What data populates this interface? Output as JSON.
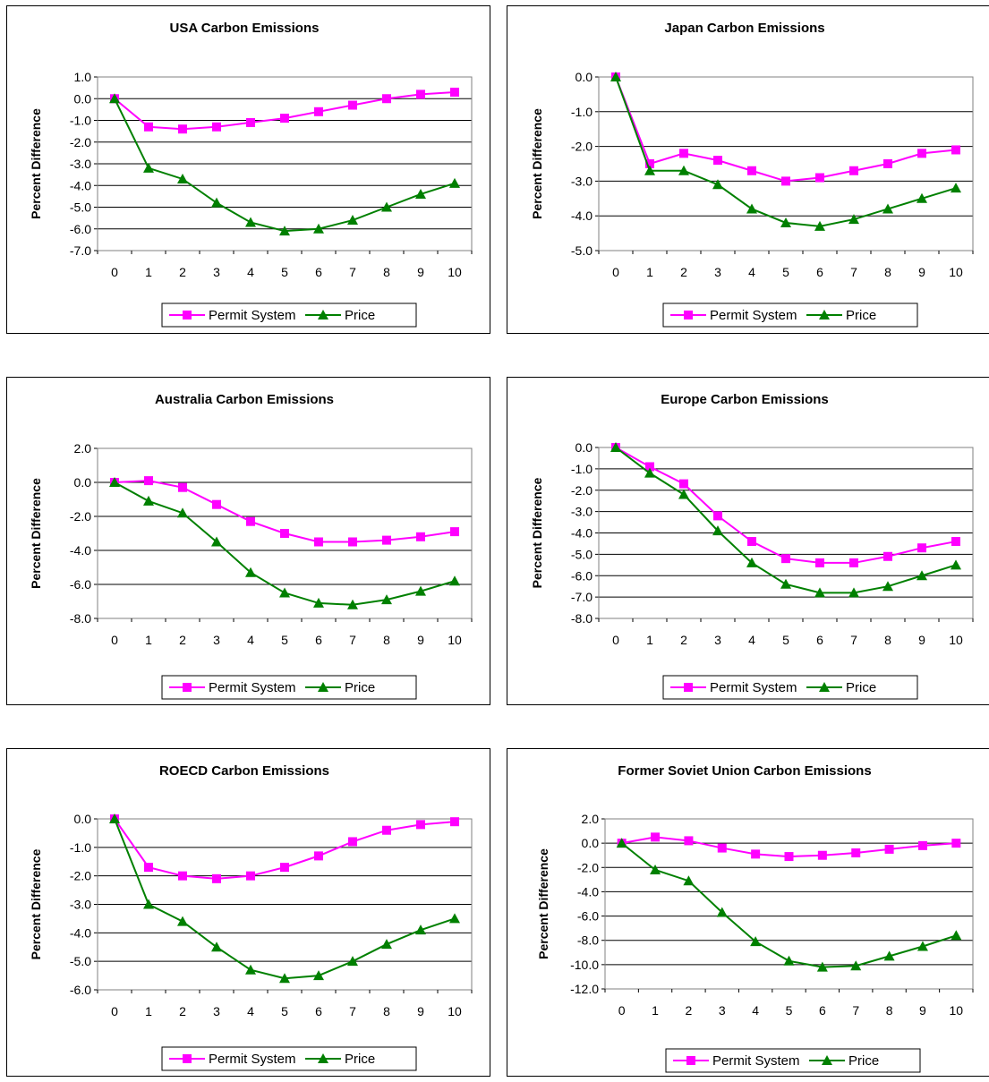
{
  "chart_data": [
    {
      "type": "line",
      "title": "USA Carbon Emissions",
      "xlabel": "",
      "ylabel": "Percent Difference",
      "x": [
        0,
        1,
        2,
        3,
        4,
        5,
        6,
        7,
        8,
        9,
        10
      ],
      "ylim": [
        -7.0,
        1.0
      ],
      "yticks": [
        1.0,
        0.0,
        -1.0,
        -2.0,
        -3.0,
        -4.0,
        -5.0,
        -6.0,
        -7.0
      ],
      "ytick_labels": [
        "1.0",
        "0.0",
        "-1.0",
        "-2.0",
        "-3.0",
        "-4.0",
        "-5.0",
        "-6.0",
        "-7.0"
      ],
      "grid": true,
      "legend": "bottom",
      "series": [
        {
          "name": "Permit System",
          "color": "#ff00ff",
          "marker": "square",
          "values": [
            0.0,
            -1.3,
            -1.4,
            -1.3,
            -1.1,
            -0.9,
            -0.6,
            -0.3,
            0.0,
            0.2,
            0.3
          ]
        },
        {
          "name": "Price",
          "color": "#008000",
          "marker": "triangle",
          "values": [
            0.0,
            -3.2,
            -3.7,
            -4.8,
            -5.7,
            -6.1,
            -6.0,
            -5.6,
            -5.0,
            -4.4,
            -3.9
          ]
        }
      ]
    },
    {
      "type": "line",
      "title": "Japan Carbon Emissions",
      "xlabel": "",
      "ylabel": "Percent Difference",
      "x": [
        0,
        1,
        2,
        3,
        4,
        5,
        6,
        7,
        8,
        9,
        10
      ],
      "ylim": [
        -5.0,
        0.0
      ],
      "yticks": [
        0.0,
        -1.0,
        -2.0,
        -3.0,
        -4.0,
        -5.0
      ],
      "ytick_labels": [
        "0.0",
        "-1.0",
        "-2.0",
        "-3.0",
        "-4.0",
        "-5.0"
      ],
      "grid": true,
      "legend": "bottom",
      "series": [
        {
          "name": "Permit System",
          "color": "#ff00ff",
          "marker": "square",
          "values": [
            0.0,
            -2.5,
            -2.2,
            -2.4,
            -2.7,
            -3.0,
            -2.9,
            -2.7,
            -2.5,
            -2.2,
            -2.1
          ]
        },
        {
          "name": "Price",
          "color": "#008000",
          "marker": "triangle",
          "values": [
            0.0,
            -2.7,
            -2.7,
            -3.1,
            -3.8,
            -4.2,
            -4.3,
            -4.1,
            -3.8,
            -3.5,
            -3.2
          ]
        }
      ]
    },
    {
      "type": "line",
      "title": "Australia Carbon Emissions",
      "xlabel": "",
      "ylabel": "Percent Difference",
      "x": [
        0,
        1,
        2,
        3,
        4,
        5,
        6,
        7,
        8,
        9,
        10
      ],
      "ylim": [
        -8.0,
        2.0
      ],
      "yticks": [
        2.0,
        0.0,
        -2.0,
        -4.0,
        -6.0,
        -8.0
      ],
      "ytick_labels": [
        "2.0",
        "0.0",
        "-2.0",
        "-4.0",
        "-6.0",
        "-8.0"
      ],
      "grid": true,
      "legend": "bottom",
      "series": [
        {
          "name": "Permit System",
          "color": "#ff00ff",
          "marker": "square",
          "values": [
            0.0,
            0.1,
            -0.3,
            -1.3,
            -2.3,
            -3.0,
            -3.5,
            -3.5,
            -3.4,
            -3.2,
            -2.9
          ]
        },
        {
          "name": "Price",
          "color": "#008000",
          "marker": "triangle",
          "values": [
            0.0,
            -1.1,
            -1.8,
            -3.5,
            -5.3,
            -6.5,
            -7.1,
            -7.2,
            -6.9,
            -6.4,
            -5.8
          ]
        }
      ]
    },
    {
      "type": "line",
      "title": "Europe Carbon Emissions",
      "xlabel": "",
      "ylabel": "Percent Difference",
      "x": [
        0,
        1,
        2,
        3,
        4,
        5,
        6,
        7,
        8,
        9,
        10
      ],
      "ylim": [
        -8.0,
        0.0
      ],
      "yticks": [
        0.0,
        -1.0,
        -2.0,
        -3.0,
        -4.0,
        -5.0,
        -6.0,
        -7.0,
        -8.0
      ],
      "ytick_labels": [
        "0.0",
        "-1.0",
        "-2.0",
        "-3.0",
        "-4.0",
        "-5.0",
        "-6.0",
        "-7.0",
        "-8.0"
      ],
      "grid": true,
      "legend": "bottom",
      "series": [
        {
          "name": "Permit System",
          "color": "#ff00ff",
          "marker": "square",
          "values": [
            0.0,
            -0.9,
            -1.7,
            -3.2,
            -4.4,
            -5.2,
            -5.4,
            -5.4,
            -5.1,
            -4.7,
            -4.4
          ]
        },
        {
          "name": "Price",
          "color": "#008000",
          "marker": "triangle",
          "values": [
            0.0,
            -1.2,
            -2.2,
            -3.9,
            -5.4,
            -6.4,
            -6.8,
            -6.8,
            -6.5,
            -6.0,
            -5.5
          ]
        }
      ]
    },
    {
      "type": "line",
      "title": "ROECD Carbon Emissions",
      "xlabel": "",
      "ylabel": "Percent Difference",
      "x": [
        0,
        1,
        2,
        3,
        4,
        5,
        6,
        7,
        8,
        9,
        10
      ],
      "ylim": [
        -6.0,
        0.0
      ],
      "yticks": [
        0.0,
        -1.0,
        -2.0,
        -3.0,
        -4.0,
        -5.0,
        -6.0
      ],
      "ytick_labels": [
        "0.0",
        "-1.0",
        "-2.0",
        "-3.0",
        "-4.0",
        "-5.0",
        "-6.0"
      ],
      "grid": true,
      "legend": "bottom",
      "series": [
        {
          "name": "Permit System",
          "color": "#ff00ff",
          "marker": "square",
          "values": [
            0.0,
            -1.7,
            -2.0,
            -2.1,
            -2.0,
            -1.7,
            -1.3,
            -0.8,
            -0.4,
            -0.2,
            -0.1
          ]
        },
        {
          "name": "Price",
          "color": "#008000",
          "marker": "triangle",
          "values": [
            0.0,
            -3.0,
            -3.6,
            -4.5,
            -5.3,
            -5.6,
            -5.5,
            -5.0,
            -4.4,
            -3.9,
            -3.5
          ]
        }
      ]
    },
    {
      "type": "line",
      "title": "Former Soviet Union Carbon Emissions",
      "xlabel": "",
      "ylabel": "Percent Difference",
      "x": [
        0,
        1,
        2,
        3,
        4,
        5,
        6,
        7,
        8,
        9,
        10
      ],
      "ylim": [
        -12.0,
        2.0
      ],
      "yticks": [
        2.0,
        0.0,
        -2.0,
        -4.0,
        -6.0,
        -8.0,
        -10.0,
        -12.0
      ],
      "ytick_labels": [
        "2.0",
        "0.0",
        "-2.0",
        "-4.0",
        "-6.0",
        "-8.0",
        "-10.0",
        "-12.0"
      ],
      "grid": true,
      "legend": "bottom",
      "series": [
        {
          "name": "Permit System",
          "color": "#ff00ff",
          "marker": "square",
          "values": [
            0.0,
            0.5,
            0.2,
            -0.4,
            -0.9,
            -1.1,
            -1.0,
            -0.8,
            -0.5,
            -0.2,
            0.0
          ]
        },
        {
          "name": "Price",
          "color": "#008000",
          "marker": "triangle",
          "values": [
            0.0,
            -2.2,
            -3.1,
            -5.7,
            -8.1,
            -9.7,
            -10.2,
            -10.1,
            -9.3,
            -8.5,
            -7.6
          ]
        }
      ]
    }
  ]
}
